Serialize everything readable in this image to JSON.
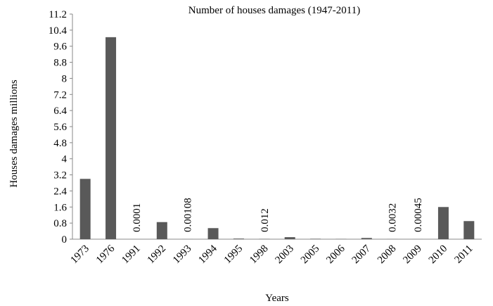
{
  "chart_data": {
    "type": "bar",
    "title": "Number of houses damages (1947-2011)",
    "y_label": "Houses damages   millions",
    "x_label": "Years",
    "categories": [
      "1973",
      "1976",
      "1991",
      "1992",
      "1993",
      "1994",
      "1995",
      "1998",
      "2003",
      "2005",
      "2006",
      "2007",
      "2008",
      "2009",
      "2010",
      "2011"
    ],
    "values": [
      3.0,
      10.05,
      0.0001,
      0.85,
      0.00108,
      0.55,
      0.03,
      0.012,
      0.1,
      0.02,
      0.01,
      0.06,
      0.0032,
      0.00045,
      1.6,
      0.9
    ],
    "value_labels": [
      null,
      null,
      "0.0001",
      null,
      "0.00108",
      null,
      null,
      "0.012",
      null,
      null,
      null,
      null,
      "0.0032",
      "0.00045",
      null,
      null
    ],
    "color": "#595959",
    "ylim": [
      0,
      11.2
    ],
    "yticks": [
      0,
      0.8,
      1.6,
      2.4,
      3.2,
      4,
      4.8,
      5.6,
      6.4,
      7.2,
      8,
      8.8,
      9.6,
      10.4,
      11.2
    ],
    "grid": false
  }
}
